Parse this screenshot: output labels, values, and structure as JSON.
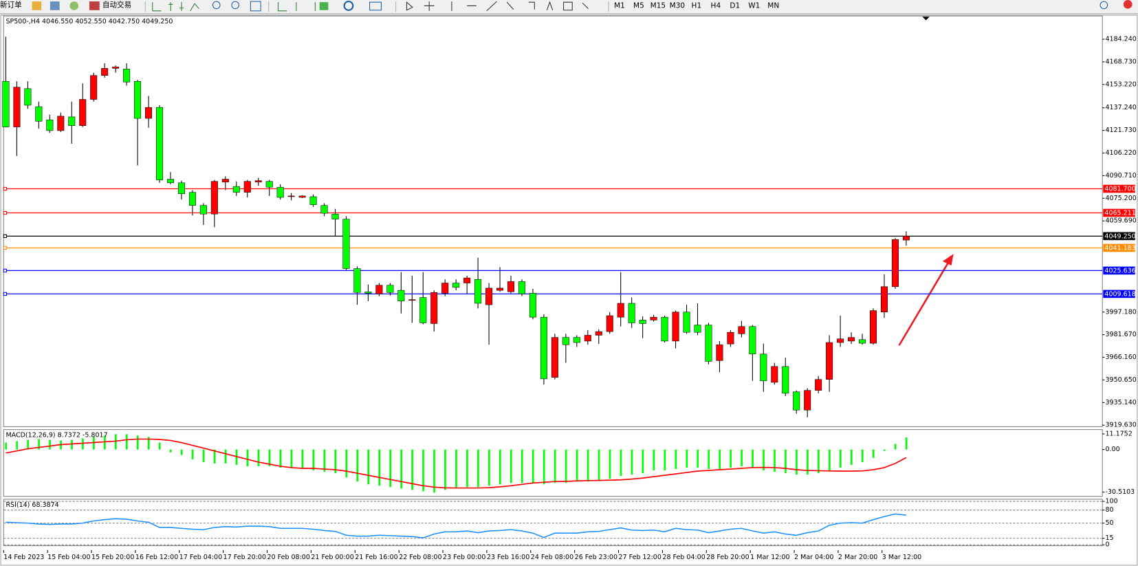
{
  "toolbar": {
    "buttons": [
      "新订单",
      "自动交易"
    ],
    "timeframes": [
      "M1",
      "M5",
      "M15",
      "M30",
      "H1",
      "H4",
      "D1",
      "W1",
      "MN"
    ]
  },
  "chart_data": [
    {
      "type": "candle",
      "title": "SP500-,H4  4046.550 4052.550 4042.750 4049.250",
      "up_color": "#ff0000",
      "down_color": "#00ff00",
      "categories": [
        "14 Feb 2023",
        null,
        null,
        null,
        "15 Feb 04:00",
        null,
        null,
        null,
        "15 Feb 20:00",
        null,
        null,
        null,
        "16 Feb 12:00",
        null,
        null,
        null,
        "17 Feb 04:00",
        null,
        null,
        null,
        "17 Feb 20:00",
        null,
        null,
        null,
        "20 Feb 08:00",
        null,
        null,
        null,
        "21 Feb 00:00",
        null,
        null,
        null,
        "21 Feb 16:00",
        null,
        null,
        null,
        "22 Feb 08:00",
        null,
        null,
        null,
        "23 Feb 00:00",
        null,
        null,
        null,
        "23 Feb 16:00",
        null,
        null,
        null,
        "24 Feb 08:00",
        null,
        null,
        null,
        "26 Feb 23:00",
        null,
        null,
        null,
        "27 Feb 12:00",
        null,
        null,
        null,
        "28 Feb 04:00",
        null,
        null,
        null,
        "28 Feb 20:00",
        null,
        null,
        null,
        "1 Mar 12:00",
        null,
        null,
        null,
        "2 Mar 04:00",
        null,
        null,
        null,
        "2 Mar 20:00",
        null,
        null,
        null,
        "3 Mar 12:00",
        null,
        null
      ],
      "open": [
        4155.4,
        4124.1,
        4150.4,
        4138,
        4129,
        4121.6,
        4131,
        4125,
        4143,
        4159.4,
        4164.3,
        4163.8,
        4155.4,
        4130,
        4137.5,
        4088.3,
        4085.8,
        4079.3,
        4070.3,
        4064.4,
        4086.3,
        4083.3,
        4079.3,
        4086.3,
        4086.8,
        4082.8,
        4076.3,
        4075.8,
        4076.3,
        4070.3,
        4064.4,
        4060.9,
        4027,
        4011.1,
        4009.6,
        4015.6,
        4012.1,
        4005.2,
        4007.2,
        3989.3,
        4010.1,
        4017.1,
        4017.1,
        4019.6,
        4002.2,
        4012.1,
        4011.1,
        4018.1,
        4010.1,
        3993.7,
        3952.4,
        3979.8,
        3979.8,
        3977.3,
        3981.3,
        3983.8,
        3993.7,
        4003.2,
        3991.7,
        3991.7,
        3993.7,
        3977.3,
        3997.2,
        3988.3,
        3988.3,
        3963.9,
        3975.3,
        3982.3,
        3987.3,
        3968.4,
        3949,
        3959.9,
        3942.5,
        3930,
        3943.5,
        3951,
        3976.3,
        3977.3,
        3978.3,
        3975.8,
        3997.2,
        4014.6,
        4046.55
      ],
      "high": [
        4186,
        4155.4,
        4155.4,
        4141.5,
        4132.5,
        4134,
        4141.5,
        4154,
        4161.3,
        4167.8,
        4166.3,
        4167.8,
        4156.4,
        4145.4,
        4139,
        4093.2,
        4087.3,
        4080.8,
        4071.8,
        4087.8,
        4090.2,
        4086.8,
        4087.8,
        4089.2,
        4087.8,
        4084.8,
        4078.8,
        4077.3,
        4077.8,
        4071.8,
        4067.9,
        4062.9,
        4028.5,
        4016.1,
        4017.1,
        4017.1,
        4024.6,
        4022.1,
        4024.6,
        4012.1,
        4019.6,
        4019.6,
        4022.1,
        4034.5,
        4017.1,
        4028,
        4022.1,
        4019.6,
        4013.1,
        3995.7,
        3982.3,
        3982.3,
        3981.3,
        3984.8,
        3985.3,
        3997.2,
        4024.6,
        4007.2,
        3994.2,
        3995.2,
        3994.7,
        3998.2,
        4002.2,
        4003.2,
        3989.8,
        3977.3,
        3984.8,
        3991.2,
        3988.3,
        3975.6,
        3962.4,
        3965.9,
        3943.5,
        3945,
        3953.4,
        3981.3,
        3994.7,
        3983.3,
        3982.3,
        3999.7,
        4023.1,
        4047.9,
        4052.55
      ],
      "low": [
        4124,
        4104.2,
        4136.5,
        4123,
        4120,
        4120.6,
        4112.6,
        4124,
        4141.5,
        4157.9,
        4161.3,
        4152.4,
        4097.7,
        4123.6,
        4085.8,
        4084.8,
        4074.3,
        4063.4,
        4056.9,
        4055.4,
        4080.8,
        4076.8,
        4075.8,
        4083.8,
        4076.8,
        4074.3,
        4073.8,
        4075.3,
        4069.3,
        4062.9,
        4048.9,
        4026,
        4002.2,
        4004.7,
        4008.1,
        4008.6,
        3996.2,
        3989.8,
        3988.8,
        3983.8,
        4008.1,
        4012.1,
        4009.6,
        3999.7,
        3974.8,
        4011.1,
        4010.1,
        4008.1,
        3992.2,
        3947.5,
        3951,
        3962.4,
        3973.3,
        3974.8,
        3975.3,
        3982.3,
        3987.3,
        3986.3,
        3979.3,
        3990.7,
        3976.3,
        3972.3,
        3982.3,
        3981.3,
        3961.4,
        3955.9,
        3973.3,
        3979.8,
        3950,
        3942.5,
        3947.5,
        3939.5,
        3927.5,
        3925.1,
        3941.5,
        3942.5,
        3973.3,
        3975.3,
        3974.8,
        3974.8,
        3993.2,
        4013.1,
        4042.75
      ],
      "close": [
        4124.1,
        4151.4,
        4139,
        4128,
        4121.6,
        4131.5,
        4125,
        4143,
        4159.4,
        4164.3,
        4165.3,
        4154.9,
        4130,
        4137.5,
        4087.8,
        4085.8,
        4078.3,
        4070.3,
        4064.4,
        4086.8,
        4088.3,
        4079.3,
        4086.8,
        4087.3,
        4082.8,
        4075.8,
        4076.8,
        4076.8,
        4070.8,
        4064.9,
        4060.9,
        4027,
        4010.6,
        4010.1,
        4015.6,
        4010.6,
        4004.7,
        4005.7,
        3989.8,
        4010.6,
        4017.1,
        4014.1,
        4020.6,
        4003.2,
        4013.6,
        4013.6,
        4018.1,
        4009.6,
        3993.7,
        3951.4,
        3979.8,
        3974.8,
        3976.3,
        3981.3,
        3983.8,
        3994.7,
        4003.2,
        3989.8,
        3989.3,
        3993.7,
        3977.3,
        3997.2,
        3983.3,
        3983.3,
        3963.4,
        3974.8,
        3983.3,
        3987.3,
        3968.4,
        3950,
        3959.9,
        3941.5,
        3930,
        3943.5,
        3951,
        3976.3,
        3978.8,
        3979.8,
        3975.8,
        3998.2,
        4014.6,
        4046.9,
        4049.25
      ],
      "ylim": [
        3918.6,
        4200.2
      ],
      "yticks": [
        {
          "value": 4184.24,
          "label": "4184.240"
        },
        {
          "value": 4168.73,
          "label": "4168.730"
        },
        {
          "value": 4153.22,
          "label": "4153.220"
        },
        {
          "value": 4137.24,
          "label": "4137.240"
        },
        {
          "value": 4121.73,
          "label": "4121.730"
        },
        {
          "value": 4106.22,
          "label": "4106.220"
        },
        {
          "value": 4090.71,
          "label": "4090.710"
        },
        {
          "value": 4075.2,
          "label": "4075.200"
        },
        {
          "value": 4059.69,
          "label": "4059.690"
        },
        {
          "value": 3997.18,
          "label": "3997.180"
        },
        {
          "value": 3981.67,
          "label": "3981.670"
        },
        {
          "value": 3966.16,
          "label": "3966.160"
        },
        {
          "value": 3950.65,
          "label": "3950.650"
        },
        {
          "value": 3935.14,
          "label": "3935.140"
        },
        {
          "value": 3919.63,
          "label": "3919.630"
        }
      ],
      "hlines": [
        {
          "value": 4081.7,
          "label": "4081.700",
          "color": "#ff0000"
        },
        {
          "value": 4065.211,
          "label": "4065.211",
          "color": "#ff0000"
        },
        {
          "value": 4049.25,
          "label": "4049.250",
          "color": "#000000"
        },
        {
          "value": 4041.183,
          "label": "4041.183",
          "color": "#ff8c00"
        },
        {
          "value": 4025.636,
          "label": "4025.636",
          "color": "#0000ff"
        },
        {
          "value": 4009.618,
          "label": "4009.618",
          "color": "#0000ff"
        }
      ],
      "grid": false
    },
    {
      "type": "macd",
      "title": "MACD(12,26,9) 8.7372 -5.8017",
      "series": [
        {
          "kind": "bar",
          "color": "#00ff00",
          "values": [
            5,
            6,
            7,
            7.5,
            7,
            6.5,
            7,
            8,
            9,
            10,
            11,
            11,
            10,
            9,
            5,
            -2,
            -4,
            -7,
            -9,
            -10,
            -10,
            -11,
            -12,
            -12,
            -12,
            -13,
            -13,
            -14,
            -15,
            -16,
            -17,
            -20,
            -23,
            -25,
            -26,
            -27,
            -28,
            -29,
            -30,
            -31,
            -29,
            -28,
            -27,
            -27,
            -26,
            -25,
            -24,
            -24,
            -24,
            -25,
            -24,
            -24,
            -23,
            -23,
            -22,
            -21,
            -19,
            -18,
            -17,
            -15,
            -15,
            -14,
            -13,
            -13,
            -14,
            -14,
            -13,
            -12,
            -13,
            -15,
            -16,
            -17,
            -18,
            -18,
            -17,
            -15,
            -13,
            -11,
            -9,
            -6,
            -1,
            4,
            8.7372
          ]
        },
        {
          "kind": "line",
          "color": "#ff0000",
          "values": [
            -2.5,
            -1,
            0.5,
            1.5,
            2.5,
            3.5,
            4,
            4.5,
            5,
            5.5,
            6,
            7,
            7.5,
            7.5,
            7.2,
            6.5,
            5,
            3,
            1,
            -1,
            -3,
            -5,
            -7,
            -9,
            -10.5,
            -12,
            -13,
            -13.5,
            -13.5,
            -14,
            -14.5,
            -15.5,
            -17,
            -18.5,
            -20,
            -21.5,
            -23,
            -24.5,
            -26,
            -27,
            -27.5,
            -27.6,
            -27.6,
            -27.6,
            -27.4,
            -26.8,
            -26,
            -25,
            -24,
            -23.5,
            -23,
            -22.8,
            -22.5,
            -22.3,
            -22.2,
            -22,
            -21.8,
            -21.2,
            -20.5,
            -19.5,
            -18.5,
            -17.5,
            -16.5,
            -15.5,
            -15,
            -14.5,
            -14,
            -13.5,
            -13,
            -12.8,
            -13,
            -13.5,
            -14.5,
            -15,
            -15.2,
            -15.4,
            -15.5,
            -15.5,
            -15.3,
            -14.5,
            -13,
            -10,
            -5.8017
          ]
        }
      ],
      "ylim": [
        -33.6,
        14.3
      ],
      "yticks": [
        11.1752,
        {
          "value": 0,
          "label": "0.00"
        },
        -30.5103
      ],
      "grid": false
    },
    {
      "type": "line",
      "title": "RSI(14) 68.3874",
      "series": [
        {
          "kind": "line",
          "color": "#1e90ff",
          "values": [
            52,
            51,
            50,
            48,
            47,
            48,
            48,
            50,
            55,
            58,
            60,
            59,
            55,
            52,
            40,
            40,
            38,
            36,
            35,
            40,
            42,
            41,
            43,
            43,
            42,
            38,
            38,
            38,
            36,
            33,
            31,
            22,
            20,
            20,
            22,
            21,
            20,
            19,
            16,
            25,
            30,
            30,
            32,
            28,
            32,
            33,
            35,
            32,
            27,
            17,
            27,
            27,
            27,
            30,
            31,
            35,
            39,
            34,
            33,
            34,
            30,
            38,
            35,
            34,
            28,
            32,
            36,
            38,
            32,
            27,
            30,
            25,
            22,
            28,
            32,
            45,
            50,
            51,
            50,
            58,
            65,
            71,
            68.3874
          ]
        }
      ],
      "ylim": [
        -2,
        105
      ],
      "yticks": [
        100,
        80,
        50,
        15,
        0
      ],
      "grid": "dashed"
    }
  ]
}
